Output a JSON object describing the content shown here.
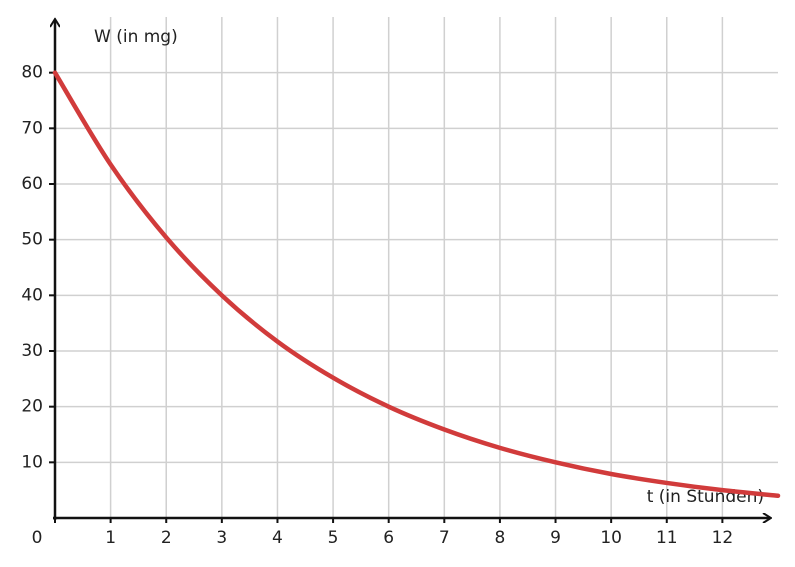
{
  "chart_data": {
    "type": "line",
    "x_label": "t (in Stunden)",
    "y_label": "W (in mg)",
    "x": [
      0,
      1,
      2,
      3,
      4,
      5,
      6,
      7,
      8,
      9,
      10,
      11,
      12,
      13
    ],
    "series": [
      {
        "name": "W",
        "color": "#d13b3b",
        "values": [
          80,
          63.5,
          50.4,
          40,
          31.7,
          25.2,
          20,
          15.9,
          12.6,
          10,
          7.9,
          6.3,
          5,
          4
        ]
      }
    ],
    "xlim": [
      0,
      13
    ],
    "ylim": [
      0,
      90
    ],
    "xticks": [
      0,
      1,
      2,
      3,
      4,
      5,
      6,
      7,
      8,
      9,
      10,
      11,
      12
    ],
    "yticks": [
      10,
      20,
      30,
      40,
      50,
      60,
      70,
      80
    ],
    "grid": true
  }
}
